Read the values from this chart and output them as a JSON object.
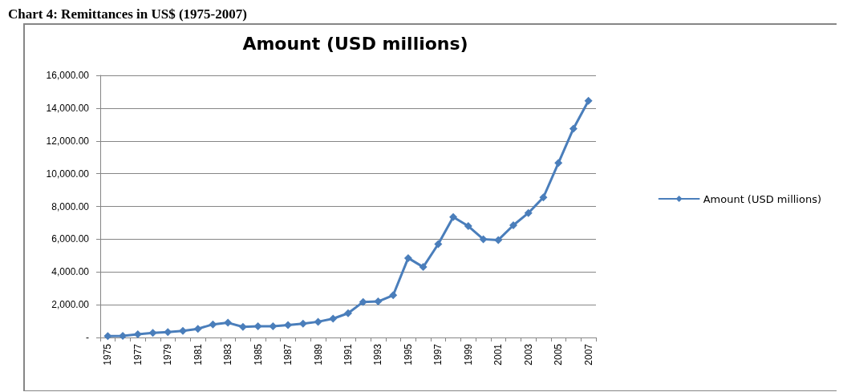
{
  "chart_data": {
    "type": "line",
    "title": "Amount (USD millions)",
    "annotations": [
      "Chart 4: Remittances in US$ (1975-2007)"
    ],
    "categories": [
      "1975",
      null,
      "1977",
      null,
      "1979",
      null,
      "1981",
      null,
      "1983",
      null,
      "1985",
      null,
      "1987",
      null,
      "1989",
      null,
      "1991",
      null,
      "1993",
      null,
      "1995",
      null,
      "1997",
      null,
      "1999",
      null,
      "2001",
      null,
      "2003",
      null,
      "2005",
      null,
      "2007"
    ],
    "series": [
      {
        "name": "Amount (USD millions)",
        "color": "#4a7ebb",
        "values": [
          80,
          100,
          200,
          280,
          330,
          400,
          530,
          800,
          900,
          650,
          680,
          680,
          760,
          840,
          960,
          1150,
          1480,
          2170,
          2200,
          2580,
          4850,
          4300,
          5700,
          7350,
          6800,
          6000,
          5950,
          6850,
          7600,
          8550,
          10650,
          12750,
          14450
        ]
      }
    ],
    "ylim": [
      0,
      16000
    ],
    "yticks": [
      {
        "value": 0,
        "label": "-"
      },
      {
        "value": 2000,
        "label": "2,000.00"
      },
      {
        "value": 4000,
        "label": "4,000.00"
      },
      {
        "value": 6000,
        "label": "6,000.00"
      },
      {
        "value": 8000,
        "label": "8,000.00"
      },
      {
        "value": 10000,
        "label": "10,000.00"
      },
      {
        "value": 12000,
        "label": "12,000.00"
      },
      {
        "value": 14000,
        "label": "14,000.00"
      },
      {
        "value": 16000,
        "label": "16,000.00"
      }
    ],
    "grid": "y",
    "legend": "right",
    "marker": "diamond",
    "line_style": "solid"
  }
}
